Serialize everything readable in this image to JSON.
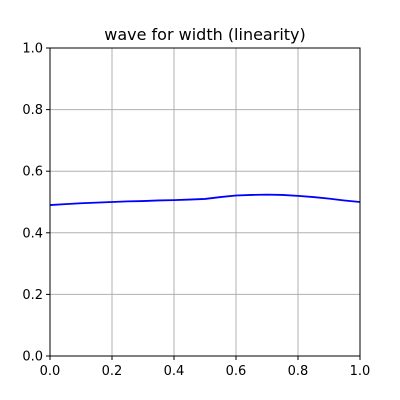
{
  "chart_data": {
    "type": "line",
    "title": "wave for width (linearity)",
    "xlabel": "",
    "ylabel": "",
    "xlim": [
      0,
      1
    ],
    "ylim": [
      0,
      1
    ],
    "xticks": [
      "0.0",
      "0.2",
      "0.4",
      "0.6",
      "0.8",
      "1.0"
    ],
    "yticks": [
      "0.0",
      "0.2",
      "0.4",
      "0.6",
      "0.8",
      "1.0"
    ],
    "grid": true,
    "legend": "none",
    "series": [
      {
        "color": "#0000ff",
        "x": [
          0.0,
          0.05,
          0.1,
          0.15,
          0.2,
          0.25,
          0.3,
          0.35,
          0.4,
          0.45,
          0.5,
          0.55,
          0.6,
          0.65,
          0.7,
          0.75,
          0.8,
          0.85,
          0.9,
          0.95,
          1.0
        ],
        "y": [
          0.49,
          0.493,
          0.496,
          0.498,
          0.5,
          0.502,
          0.503,
          0.505,
          0.506,
          0.508,
          0.51,
          0.516,
          0.521,
          0.523,
          0.524,
          0.523,
          0.52,
          0.516,
          0.511,
          0.505,
          0.5
        ]
      }
    ]
  }
}
